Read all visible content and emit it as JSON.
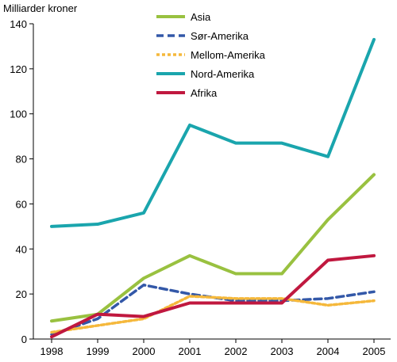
{
  "chart_data": {
    "type": "line",
    "ylabel": "Milliarder kroner",
    "xlabel": "",
    "categories": [
      "1998",
      "1999",
      "2000",
      "2001",
      "2002",
      "2003",
      "2004",
      "2005"
    ],
    "ylim": [
      0,
      140
    ],
    "yticks": [
      0,
      20,
      40,
      60,
      80,
      100,
      120,
      140
    ],
    "grid": false,
    "legend_placement": "top-right",
    "series": [
      {
        "name": "Asia",
        "color": "#99c140",
        "dash": "solid",
        "values": [
          8,
          11,
          27,
          37,
          29,
          29,
          53,
          73
        ]
      },
      {
        "name": "Sør-Amerika",
        "color": "#3358a8",
        "dash": "dashed",
        "values": [
          2,
          9,
          24,
          20,
          17,
          17,
          18,
          21
        ]
      },
      {
        "name": "Mellom-Amerika",
        "color": "#f5b83b",
        "dash": "dotted",
        "values": [
          3,
          6,
          9,
          19,
          18,
          18,
          15,
          17
        ]
      },
      {
        "name": "Nord-Amerika",
        "color": "#1aa5ad",
        "dash": "solid",
        "values": [
          50,
          51,
          56,
          95,
          87,
          87,
          81,
          133
        ]
      },
      {
        "name": "Afrika",
        "color": "#c0183f",
        "dash": "solid",
        "values": [
          1,
          11,
          10,
          16,
          16,
          16,
          35,
          37
        ]
      }
    ]
  }
}
